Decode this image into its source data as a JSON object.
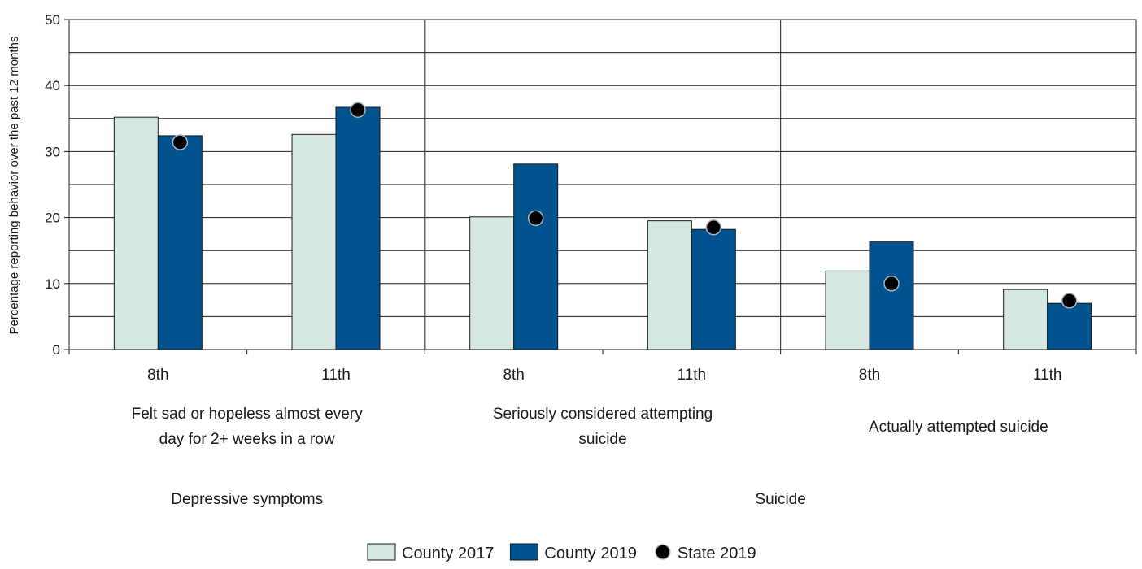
{
  "chart_data": {
    "type": "bar",
    "title": "",
    "xlabel": "",
    "ylabel": "Percentage reporting behavior over the past 12 months",
    "ylim": [
      0,
      50
    ],
    "yticks": [
      0,
      10,
      20,
      30,
      40,
      50
    ],
    "grid": true,
    "legend_position": "bottom",
    "categories": [
      "8th",
      "11th",
      "8th",
      "11th",
      "8th",
      "11th"
    ],
    "subgroups": [
      {
        "label_lines": [
          "Felt sad or hopeless almost every",
          "day for 2+ weeks in a row"
        ]
      },
      {
        "label_lines": [
          "Seriously considered attempting",
          "suicide"
        ]
      },
      {
        "label_lines": [
          "Actually attempted suicide"
        ]
      }
    ],
    "groups": [
      {
        "label": "Depressive symptoms"
      },
      {
        "label": "Suicide"
      }
    ],
    "series": [
      {
        "name": "County 2017",
        "type": "bar",
        "color": "#d4e8df",
        "values": [
          35.2,
          32.6,
          20.1,
          19.5,
          11.9,
          9.1
        ]
      },
      {
        "name": "County 2019",
        "type": "bar",
        "color": "#00538f",
        "values": [
          32.4,
          36.7,
          28.1,
          18.2,
          16.3,
          7.0
        ]
      },
      {
        "name": "State 2019",
        "type": "point",
        "color": "#000000",
        "values": [
          31.4,
          36.3,
          19.9,
          18.5,
          10.0,
          7.4
        ]
      }
    ]
  }
}
